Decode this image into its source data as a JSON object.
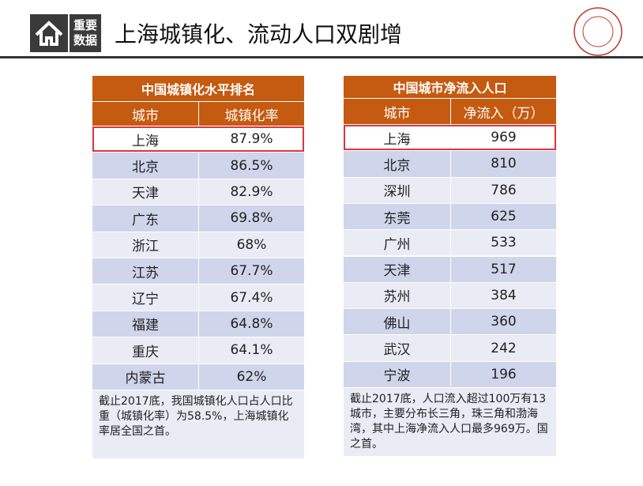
{
  "header": {
    "badge": [
      "重要",
      "数据"
    ],
    "title": "上海城镇化、流动人口双剧增"
  },
  "tables": [
    {
      "title": "中国城镇化水平排名",
      "columns": [
        "城市",
        "城镇化率"
      ],
      "rows": [
        [
          "上海",
          "87.9%"
        ],
        [
          "北京",
          "86.5%"
        ],
        [
          "天津",
          "82.9%"
        ],
        [
          "广东",
          "69.8%"
        ],
        [
          "浙江",
          "68%"
        ],
        [
          "江苏",
          "67.7%"
        ],
        [
          "辽宁",
          "67.4%"
        ],
        [
          "福建",
          "64.8%"
        ],
        [
          "重庆",
          "64.1%"
        ],
        [
          "内蒙古",
          "62%"
        ]
      ],
      "note": "截止2017底，我国城镇化人口占人口比重（城镇化率）为58.5%，上海城镇化率居全国之首。"
    },
    {
      "title": "中国城市净流入人口",
      "columns": [
        "城市",
        "净流入（万）"
      ],
      "rows": [
        [
          "上海",
          "969"
        ],
        [
          "北京",
          "810"
        ],
        [
          "深圳",
          "786"
        ],
        [
          "东莞",
          "625"
        ],
        [
          "广州",
          "533"
        ],
        [
          "天津",
          "517"
        ],
        [
          "苏州",
          "384"
        ],
        [
          "佛山",
          "360"
        ],
        [
          "武汉",
          "242"
        ],
        [
          "宁波",
          "196"
        ]
      ],
      "note": "截止2017底，人口流入超过100万有13城市，主要分布长三角，珠三角和渤海湾，其中上海净流入人口最多969万。国之首。"
    }
  ]
}
